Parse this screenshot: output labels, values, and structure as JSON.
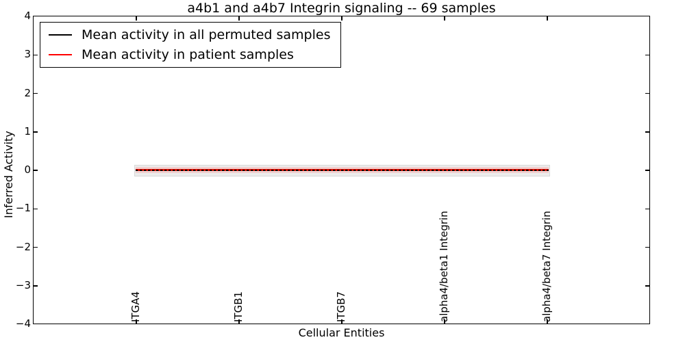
{
  "title": "a4b1 and a4b7 Integrin signaling -- 69 samples",
  "axes": {
    "x_label": "Cellular Entities",
    "y_label": "Inferred Activity",
    "y_tick_labels": [
      "4",
      "3",
      "2",
      "1",
      "0",
      "−1",
      "−2",
      "−3",
      "−4"
    ],
    "x_tick_labels": [
      "ITGA4",
      "ITGB1",
      "ITGB7",
      "alpha4/beta1 Integrin",
      "alpha4/beta7 Integrin"
    ]
  },
  "legend": {
    "items": [
      {
        "label": "Mean activity in all permuted samples",
        "color": "#000000"
      },
      {
        "label": "Mean activity in patient samples",
        "color": "#ff0000"
      }
    ]
  },
  "chart_data": {
    "type": "line",
    "title": "a4b1 and a4b7 Integrin signaling -- 69 samples",
    "xlabel": "Cellular Entities",
    "ylabel": "Inferred Activity",
    "ylim": [
      -4,
      4
    ],
    "yticks": [
      4,
      3,
      2,
      1,
      0,
      -1,
      -2,
      -3,
      -4
    ],
    "categories": [
      "ITGA4",
      "ITGB1",
      "ITGB7",
      "alpha4/beta1 Integrin",
      "alpha4/beta7 Integrin"
    ],
    "series": [
      {
        "name": "Mean activity in all permuted samples",
        "color": "#000000",
        "values": [
          0.0,
          0.0,
          0.0,
          0.0,
          0.0
        ],
        "band_halfwidth": 0.15,
        "band_color": "#ececec"
      },
      {
        "name": "Mean activity in patient samples",
        "color": "#ff0000",
        "values": [
          0.0,
          0.0,
          0.0,
          0.0,
          0.0
        ],
        "band_halfwidth": 0.08,
        "band_color": "#f6c9c9"
      }
    ],
    "legend_position": "upper left",
    "grid": false
  }
}
